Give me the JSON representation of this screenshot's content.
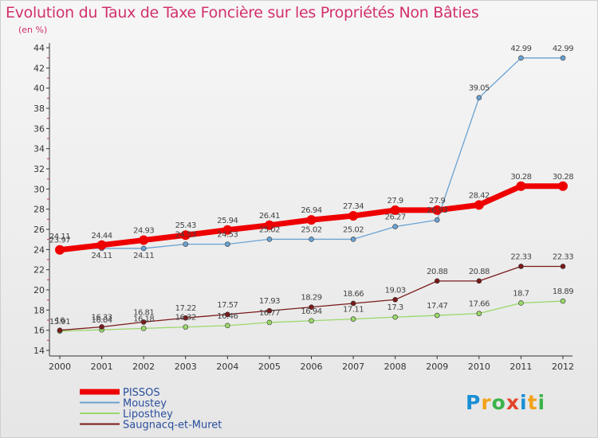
{
  "title": "Evolution du Taux de Taxe Foncière sur les Propriétés Non Bâties",
  "unit": "(en %)",
  "logo": {
    "text": "Proxiti",
    "letters": [
      "P",
      "r",
      "o",
      "x",
      "i",
      "t",
      "i"
    ],
    "colors": [
      "#1a8fd6",
      "#f2a21b",
      "#3bb34a",
      "#e0452b",
      "#1a8fd6",
      "#f2a21b",
      "#3bb34a"
    ]
  },
  "chart_data": {
    "type": "line",
    "x": [
      "2000",
      "2001",
      "2002",
      "2003",
      "2004",
      "2005",
      "2006",
      "2007",
      "2008",
      "2009",
      "2010",
      "2011",
      "2012"
    ],
    "ylim": [
      14,
      44
    ],
    "yticks": [
      14,
      16,
      18,
      20,
      22,
      24,
      26,
      28,
      30,
      32,
      34,
      36,
      38,
      40,
      42,
      44
    ],
    "grid": false,
    "legend": "bottom-left",
    "series": [
      {
        "name": "PISSOS",
        "color": "#ee0000",
        "values": [
          23.97,
          24.44,
          24.93,
          25.43,
          25.94,
          26.41,
          26.94,
          27.34,
          27.9,
          27.9,
          28.42,
          30.28,
          30.28
        ],
        "labels": [
          "23.97",
          "24.44",
          "24.93",
          "25.43",
          "25.94",
          "26.41",
          "26.94",
          "27.34",
          "27.9",
          "27.9",
          "28.42",
          "30.28",
          "30.28"
        ]
      },
      {
        "name": "Moustey",
        "color": "#6aa2d2",
        "values": [
          24.11,
          24.11,
          24.11,
          24.53,
          24.53,
          25.02,
          25.02,
          25.02,
          26.27,
          26.93,
          39.05,
          42.99,
          42.99
        ],
        "labels": [
          "24.11",
          "24.11",
          "24.11",
          "24.53",
          "24.53",
          "25.02",
          "25.02",
          "25.02",
          "26.27",
          "26.93",
          "39.05",
          "42.99",
          "42.99"
        ]
      },
      {
        "name": "Liposthey",
        "color": "#9ad86a",
        "values": [
          15.91,
          16.04,
          16.18,
          16.32,
          16.46,
          16.77,
          16.94,
          17.11,
          17.3,
          17.47,
          17.66,
          18.7,
          18.89
        ],
        "labels": [
          "15.91",
          "16.04",
          "16.18",
          "16.32",
          "16.46",
          "16.77",
          "16.94",
          "17.11",
          "17.3",
          "17.47",
          "17.66",
          "18.7",
          "18.89"
        ]
      },
      {
        "name": "Saugnacq-et-Muret",
        "color": "#7a1a1a",
        "values": [
          16.0,
          16.33,
          16.81,
          17.22,
          17.57,
          17.93,
          18.29,
          18.66,
          19.03,
          20.88,
          20.88,
          22.33,
          22.33
        ],
        "labels": [
          "16",
          "16.33",
          "16.81",
          "17.22",
          "17.57",
          "17.93",
          "18.29",
          "18.66",
          "19.03",
          "20.88",
          "20.88",
          "22.33",
          "22.33"
        ]
      }
    ]
  }
}
